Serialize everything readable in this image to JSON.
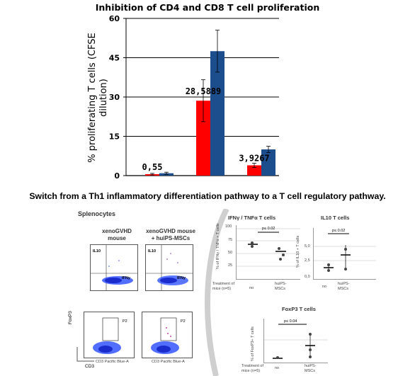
{
  "chart_data": {
    "type": "bar",
    "title": "Inhibition of CD4 and CD8 T cell proliferation",
    "ylabel": "% proliferating T cells (CFSE dilution)",
    "xlabel": "",
    "ylim": [
      0,
      60
    ],
    "yticks": [
      "0",
      "15",
      "30",
      "45",
      "60"
    ],
    "grid": true,
    "categories": [
      "",
      "",
      ""
    ],
    "series": [
      {
        "name": "",
        "color": "#ff0000",
        "values": [
          0.55,
          28.5889,
          3.9267
        ],
        "errors": [
          0.3,
          8,
          0.8
        ]
      },
      {
        "name": "",
        "color": "#1c4d8c",
        "values": [
          0.9,
          47.5,
          10.0
        ],
        "errors": [
          0.4,
          8,
          1.2
        ]
      }
    ],
    "data_labels": [
      "0,55",
      "28,5889",
      "3,9267"
    ]
  },
  "subtitle": "Switch from a Th1 inflammatory differentiation pathway to a T cell regulatory pathway.",
  "panel": {
    "splenocytes": "Splenocytes",
    "col1": [
      "xenoGVHD",
      "mouse"
    ],
    "col2": [
      "xenoGVHD mouse",
      "+ huiPS-MSCs"
    ],
    "il10": "IL10",
    "ifny": "IFNy",
    "p2": "P2",
    "foxp3_axis": "FoxP3",
    "cd3_axis": "CD3",
    "flow_x_label": "CD3 Pacific Blue-A",
    "ifn_tnf_title": "IFNγ / TNFα T cells",
    "il10_title": "IL10  T cells",
    "foxp3_title": "FoxP3 T cells",
    "treatment": [
      "Treatment of",
      "mice (n=5)"
    ],
    "no": "no",
    "hu": [
      "huiPS-",
      "MSCs"
    ],
    "p1": "p≤ 0.02",
    "p2v": "p≤ 0.02",
    "p3": "p≤ 0.04",
    "ifn_yticks": [
      "100",
      "75",
      "50",
      "25"
    ],
    "il10_yticks": [
      "5,0",
      "2,5",
      "0,0"
    ],
    "ifn_ylabel": "% of IFNγ / TNFα + T cells",
    "il10_ylabel": "% of IL10 + T cells",
    "foxp3_ylabel": "% of FoxP3+ T cells"
  }
}
